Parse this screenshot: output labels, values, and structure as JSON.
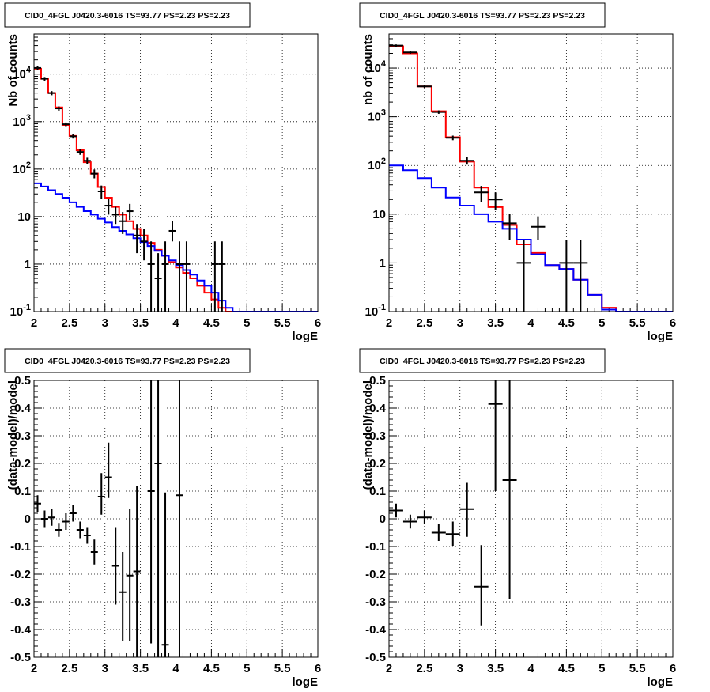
{
  "chart_data": [
    {
      "type": "line",
      "title": "CID0_4FGL J0420.3-6016 TS=93.77 PS=2.23 PS=2.23",
      "xlabel": "logE",
      "ylabel": "Nb of counts",
      "yscale": "log",
      "xlim": [
        2,
        6
      ],
      "ylim": [
        0.1,
        70000
      ],
      "xticks": [
        "2",
        "2.5",
        "3",
        "3.5",
        "4",
        "4.5",
        "5",
        "5.5",
        "6"
      ],
      "yticks": [
        "10^{-1}",
        "1",
        "10",
        "10^{2}",
        "10^{3}",
        "10^{4}"
      ],
      "grid": true,
      "series": [
        {
          "kind": "step",
          "color": "#ff0000",
          "edges": [
            2.0,
            2.1,
            2.2,
            2.3,
            2.4,
            2.5,
            2.6,
            2.7,
            2.8,
            2.9,
            3.0,
            3.1,
            3.2,
            3.3,
            3.4,
            3.5,
            3.6,
            3.7,
            3.8,
            3.9,
            4.0,
            4.1,
            4.2,
            4.3,
            4.4,
            4.5,
            4.6,
            4.7,
            4.8,
            4.9,
            5.0,
            5.1,
            5.2,
            5.3,
            5.4,
            5.5,
            5.6,
            5.7,
            5.8,
            5.9,
            6.0
          ],
          "values": [
            13000,
            8000,
            4000,
            2000,
            850,
            500,
            250,
            140,
            80,
            42,
            25,
            16,
            11,
            8,
            5.5,
            4,
            2.8,
            2.0,
            1.5,
            1.1,
            0.85,
            0.65,
            0.5,
            0.35,
            0.25,
            0.18,
            0.12,
            0.1,
            0.1,
            0.1,
            0.1,
            0.1,
            0.1,
            0.1,
            0.1,
            0.1,
            0.1,
            0.1,
            0.1,
            0.1
          ]
        },
        {
          "kind": "step",
          "color": "#0000ff",
          "edges": [
            2.0,
            2.1,
            2.2,
            2.3,
            2.4,
            2.5,
            2.6,
            2.7,
            2.8,
            2.9,
            3.0,
            3.1,
            3.2,
            3.3,
            3.4,
            3.5,
            3.6,
            3.7,
            3.8,
            3.9,
            4.0,
            4.1,
            4.2,
            4.3,
            4.4,
            4.5,
            4.6,
            4.7,
            4.8,
            4.9,
            5.0,
            5.1,
            5.2,
            5.3,
            5.4,
            5.5,
            5.6,
            5.7,
            5.8,
            5.9,
            6.0
          ],
          "values": [
            50,
            43,
            36,
            30,
            25,
            20,
            16,
            13,
            11,
            9,
            7.5,
            6,
            5,
            4.2,
            3.5,
            2.9,
            2.4,
            1.9,
            1.5,
            1.2,
            0.95,
            0.75,
            0.6,
            0.45,
            0.35,
            0.25,
            0.17,
            0.12,
            0.1,
            0.1,
            0.1,
            0.1,
            0.1,
            0.1,
            0.1,
            0.1,
            0.1,
            0.1,
            0.1,
            0.1
          ]
        },
        {
          "kind": "points",
          "color": "#000000",
          "x": [
            2.05,
            2.15,
            2.25,
            2.35,
            2.45,
            2.55,
            2.65,
            2.75,
            2.85,
            2.95,
            3.05,
            3.15,
            3.25,
            3.35,
            3.45,
            3.55,
            3.65,
            3.75,
            3.85,
            3.95,
            4.05,
            4.15,
            4.55,
            4.65
          ],
          "y": [
            13500,
            8000,
            4000,
            1900,
            880,
            490,
            230,
            150,
            80,
            34,
            17,
            11,
            8,
            13,
            4,
            3,
            1,
            0.5,
            1,
            5,
            1,
            1,
            1,
            1
          ],
          "xerr": 0.05,
          "ylo": [
            12000,
            7300,
            3600,
            1700,
            800,
            440,
            200,
            128,
            64,
            24,
            11,
            7,
            4.3,
            8.5,
            1.7,
            1.2,
            0.07,
            0.07,
            0.07,
            3,
            0.07,
            0.07,
            0.07,
            0.07
          ],
          "yhi": [
            15000,
            8700,
            4400,
            2100,
            960,
            540,
            260,
            174,
            98,
            45,
            24,
            16,
            12.5,
            18.5,
            7,
            5.4,
            3,
            1.7,
            3,
            8,
            3,
            3,
            3,
            3
          ]
        }
      ]
    },
    {
      "type": "line",
      "title": "CID0_4FGL J0420.3-6016 TS=93.77 PS=2.23 PS=2.23",
      "xlabel": "logE",
      "ylabel": "nb of counts",
      "yscale": "log",
      "xlim": [
        2,
        6
      ],
      "ylim": [
        0.1,
        50000
      ],
      "xticks": [
        "2",
        "2.5",
        "3",
        "3.5",
        "4",
        "4.5",
        "5",
        "5.5",
        "6"
      ],
      "yticks": [
        "10^{-1}",
        "1",
        "10",
        "10^{2}",
        "10^{3}",
        "10^{4}"
      ],
      "grid": true,
      "series": [
        {
          "kind": "step",
          "color": "#ff0000",
          "edges": [
            2.0,
            2.2,
            2.4,
            2.6,
            2.8,
            3.0,
            3.2,
            3.4,
            3.6,
            3.8,
            4.0,
            4.2,
            4.4,
            4.6,
            4.8,
            5.0,
            5.2,
            5.4,
            5.6,
            5.8,
            6.0
          ],
          "values": [
            28000,
            20000,
            4200,
            1300,
            380,
            120,
            35,
            14,
            6,
            2.4,
            1.6,
            0.9,
            0.75,
            0.45,
            0.22,
            0.12,
            0.1,
            0.1,
            0.1,
            0.1
          ]
        },
        {
          "kind": "step",
          "color": "#0000ff",
          "edges": [
            2.0,
            2.2,
            2.4,
            2.6,
            2.8,
            3.0,
            3.2,
            3.4,
            3.6,
            3.8,
            4.0,
            4.2,
            4.4,
            4.6,
            4.8,
            5.0,
            5.2,
            5.4,
            5.6,
            5.8,
            6.0
          ],
          "values": [
            100,
            80,
            55,
            35,
            22,
            15,
            10,
            7,
            5,
            3,
            1.5,
            0.9,
            0.75,
            0.45,
            0.22,
            0.11,
            0.1,
            0.1,
            0.1,
            0.1
          ]
        },
        {
          "kind": "points",
          "color": "#000000",
          "x": [
            2.1,
            2.3,
            2.5,
            2.7,
            2.9,
            3.1,
            3.3,
            3.5,
            3.7,
            3.9,
            4.1,
            4.5,
            4.7
          ],
          "y": [
            29000,
            21000,
            4200,
            1250,
            370,
            125,
            28,
            20,
            6.5,
            1,
            5.5,
            1,
            1
          ],
          "xerr": 0.1,
          "ylo": [
            27500,
            19700,
            3900,
            1150,
            330,
            104,
            18,
            12,
            3,
            0.07,
            3,
            0.07,
            0.07
          ],
          "yhi": [
            30500,
            22300,
            4500,
            1350,
            410,
            147,
            38,
            28,
            10,
            3,
            9,
            3,
            3
          ]
        }
      ]
    },
    {
      "type": "scatter",
      "title": "CID0_4FGL J0420.3-6016 TS=93.77 PS=2.23 PS=2.23",
      "xlabel": "logE",
      "ylabel": "(data-model)/model",
      "xlim": [
        2,
        6
      ],
      "ylim": [
        -0.5,
        0.5
      ],
      "xticks": [
        "2",
        "2.5",
        "3",
        "3.5",
        "4",
        "4.5",
        "5",
        "5.5",
        "6"
      ],
      "yticks": [
        "-0.5",
        "-0.4",
        "-0.3",
        "-0.2",
        "-0.1",
        "0",
        "0.1",
        "0.2",
        "0.3",
        "0.4",
        "0.5"
      ],
      "grid": true,
      "series": [
        {
          "kind": "points",
          "color": "#000000",
          "x": [
            2.05,
            2.15,
            2.25,
            2.35,
            2.45,
            2.55,
            2.65,
            2.75,
            2.85,
            2.95,
            3.05,
            3.15,
            3.25,
            3.35,
            3.45,
            3.65,
            3.75,
            3.85,
            4.05
          ],
          "y": [
            0.055,
            0.0,
            0.005,
            -0.04,
            -0.01,
            0.02,
            -0.04,
            -0.06,
            -0.12,
            0.08,
            0.15,
            -0.17,
            -0.265,
            -0.205,
            -0.19,
            0.1,
            0.2,
            -0.455,
            0.085
          ],
          "xerr": 0.05,
          "ylo": [
            0.025,
            -0.03,
            -0.025,
            -0.065,
            -0.04,
            -0.01,
            -0.07,
            -0.09,
            -0.165,
            0.015,
            0.075,
            -0.31,
            -0.44,
            -0.44,
            -0.5,
            -0.45,
            -0.5,
            -0.5,
            -0.5
          ],
          "yhi": [
            0.085,
            0.03,
            0.035,
            -0.015,
            0.02,
            0.05,
            -0.01,
            -0.03,
            -0.075,
            0.165,
            0.275,
            -0.03,
            -0.12,
            0.035,
            0.12,
            0.5,
            0.5,
            0.095,
            0.5
          ]
        }
      ]
    },
    {
      "type": "scatter",
      "title": "CID0_4FGL J0420.3-6016 TS=93.77 PS=2.23 PS=2.23",
      "xlabel": "logE",
      "ylabel": "(data-model)/model",
      "xlim": [
        2,
        6
      ],
      "ylim": [
        -0.5,
        0.5
      ],
      "xticks": [
        "2",
        "2.5",
        "3",
        "3.5",
        "4",
        "4.5",
        "5",
        "5.5",
        "6"
      ],
      "yticks": [
        "-0.5",
        "-0.4",
        "-0.3",
        "-0.2",
        "-0.1",
        "0",
        "0.1",
        "0.2",
        "0.3",
        "0.4",
        "0.5"
      ],
      "grid": true,
      "series": [
        {
          "kind": "points",
          "color": "#000000",
          "x": [
            2.1,
            2.3,
            2.5,
            2.7,
            2.9,
            3.1,
            3.3,
            3.5,
            3.7
          ],
          "y": [
            0.03,
            -0.01,
            0.005,
            -0.05,
            -0.055,
            0.035,
            -0.245,
            0.415,
            0.14
          ],
          "xerr": 0.1,
          "ylo": [
            0.005,
            -0.035,
            -0.02,
            -0.08,
            -0.1,
            -0.065,
            -0.385,
            0.1,
            -0.29
          ],
          "yhi": [
            0.055,
            0.015,
            0.03,
            -0.02,
            -0.01,
            0.13,
            -0.095,
            0.5,
            0.5
          ]
        }
      ]
    }
  ]
}
